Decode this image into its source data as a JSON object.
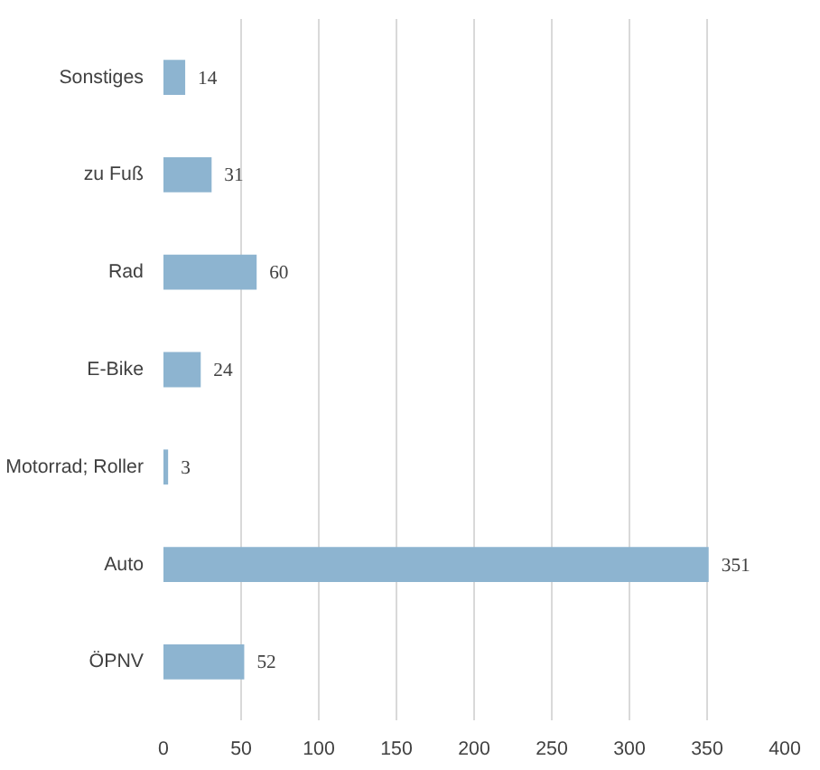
{
  "chart_data": {
    "type": "bar",
    "orientation": "horizontal",
    "categories": [
      "Sonstiges",
      "zu Fuß",
      "Rad",
      "E-Bike",
      "Motorrad; Roller",
      "Auto",
      "ÖPNV"
    ],
    "values": [
      14,
      31,
      60,
      24,
      3,
      351,
      52
    ],
    "color": "#8db4d0",
    "xlim": [
      0,
      400
    ],
    "xticks": [
      0,
      50,
      100,
      150,
      200,
      250,
      300,
      350,
      400
    ],
    "grid": "x",
    "data_labels": true
  }
}
